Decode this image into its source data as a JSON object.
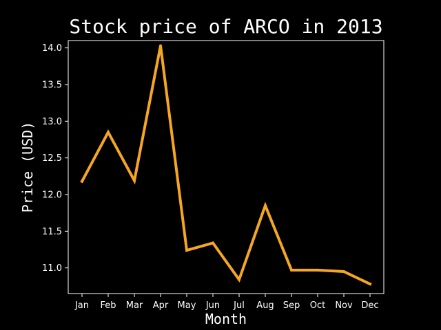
{
  "colors": {
    "background": "#000000",
    "foreground": "#ffffff",
    "line": "#f5a623"
  },
  "chart_data": {
    "type": "line",
    "title": "Stock price of ARCO in 2013",
    "xlabel": "Month",
    "ylabel": "Price (USD)",
    "categories": [
      "Jan",
      "Feb",
      "Mar",
      "Apr",
      "May",
      "Jun",
      "Jul",
      "Aug",
      "Sep",
      "Oct",
      "Nov",
      "Dec"
    ],
    "series": [
      {
        "values": [
          12.18,
          12.85,
          12.19,
          14.03,
          11.24,
          11.34,
          10.84,
          11.85,
          10.97,
          10.97,
          10.95,
          10.78
        ]
      }
    ],
    "yticks": [
      "11.0",
      "11.5",
      "12.0",
      "12.5",
      "13.0",
      "13.5",
      "14.0"
    ],
    "ylim": [
      10.65,
      14.1
    ],
    "grid": false,
    "legend": false
  }
}
